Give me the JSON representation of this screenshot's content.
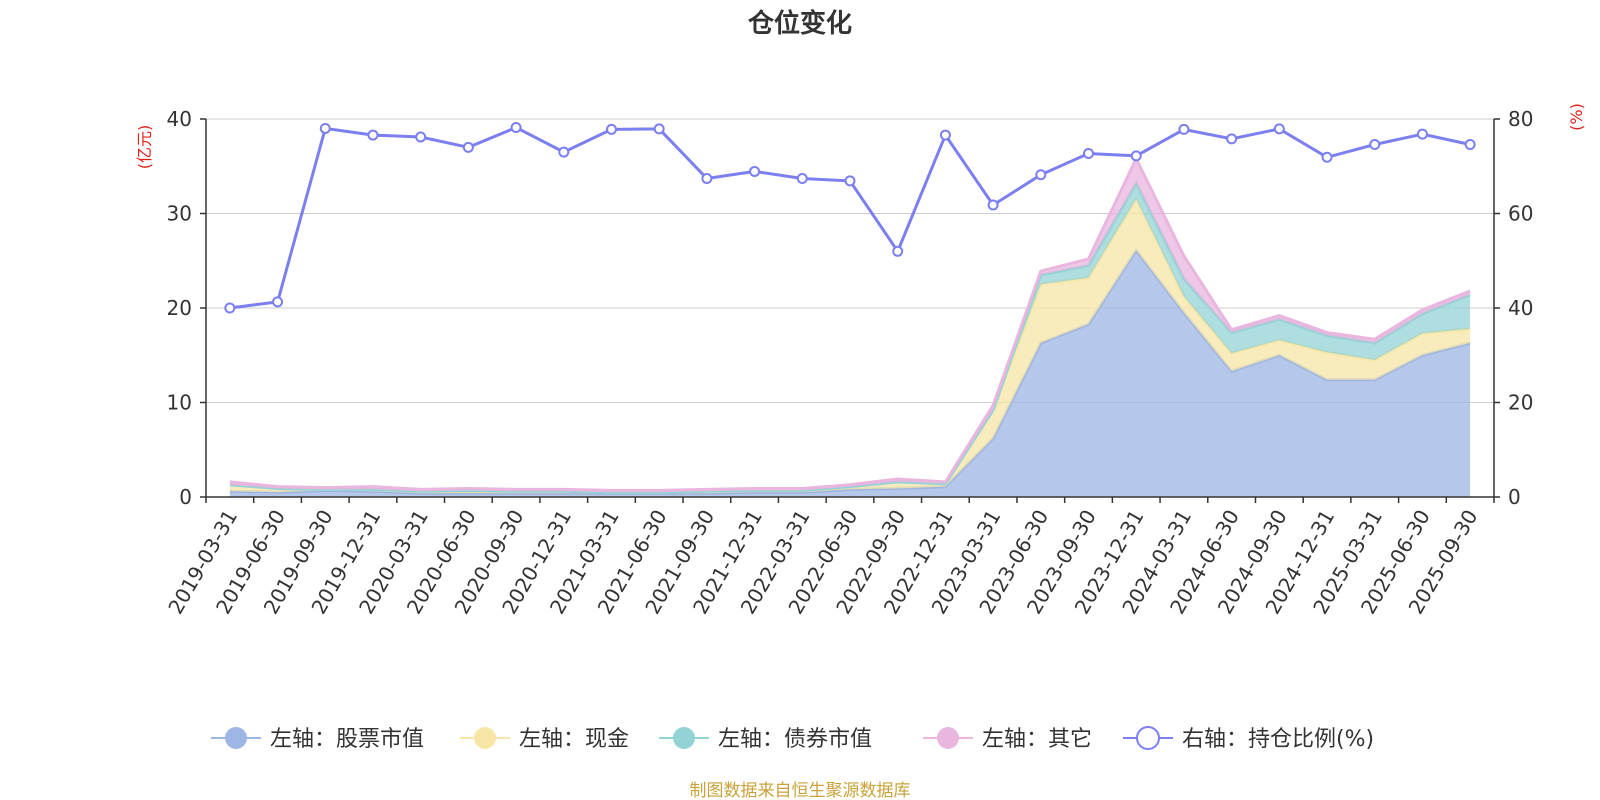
{
  "colors": {
    "stock": "#9db6e3",
    "cash": "#f7e6a6",
    "bond": "#93d3d6",
    "other": "#e8b6de",
    "ratio": "#7b7ff0",
    "unit": "#e0201a",
    "source": "#c9a23a"
  },
  "source_text": "制图数据来自恒生聚源数据库",
  "chart_data": {
    "type": "area",
    "title": "仓位变化",
    "y_left_unit": "(亿元)",
    "y_right_unit": "(%)",
    "y_left_range": [
      0,
      40
    ],
    "y_right_range": [
      0,
      80
    ],
    "y_left_ticks": [
      "0",
      "10",
      "20",
      "30",
      "40"
    ],
    "y_right_ticks": [
      "0",
      "20",
      "40",
      "60",
      "80"
    ],
    "grid": true,
    "legend_position": "bottom",
    "x": [
      "2019-03-31",
      "2019-06-30",
      "2019-09-30",
      "2019-12-31",
      "2020-03-31",
      "2020-06-30",
      "2020-09-30",
      "2020-12-31",
      "2021-03-31",
      "2021-06-30",
      "2021-09-30",
      "2021-12-31",
      "2022-03-31",
      "2022-06-30",
      "2022-09-30",
      "2022-12-31",
      "2023-03-31",
      "2023-06-30",
      "2023-09-30",
      "2023-12-31",
      "2024-03-31",
      "2024-06-30",
      "2024-09-30",
      "2024-12-31",
      "2025-03-31",
      "2025-06-30",
      "2025-09-30"
    ],
    "series": [
      {
        "name": "左轴：股票市值",
        "key": "stock",
        "axis": "left",
        "stacked": true,
        "values": [
          0.6,
          0.5,
          0.7,
          0.6,
          0.4,
          0.4,
          0.4,
          0.4,
          0.4,
          0.4,
          0.4,
          0.5,
          0.5,
          0.8,
          0.9,
          1.1,
          6.2,
          16.3,
          18.3,
          26.1,
          19.5,
          13.3,
          15.0,
          12.4,
          12.4,
          15.0,
          16.3
        ]
      },
      {
        "name": "左轴：现金",
        "key": "cash",
        "axis": "left",
        "stacked": true,
        "values": [
          0.7,
          0.4,
          0.1,
          0.2,
          0.2,
          0.3,
          0.2,
          0.2,
          0.1,
          0.1,
          0.2,
          0.2,
          0.2,
          0.3,
          0.7,
          0.3,
          3.0,
          6.2,
          4.9,
          5.4,
          1.7,
          1.9,
          1.6,
          2.9,
          2.1,
          2.3,
          1.5
        ]
      },
      {
        "name": "左轴：债券市值",
        "key": "bond",
        "axis": "left",
        "stacked": true,
        "values": [
          0.0,
          0.0,
          0.0,
          0.0,
          0.0,
          0.0,
          0.0,
          0.0,
          0.0,
          0.0,
          0.0,
          0.0,
          0.0,
          0.0,
          0.0,
          0.0,
          0.0,
          1.0,
          1.3,
          1.7,
          1.9,
          2.2,
          2.2,
          1.8,
          1.8,
          2.1,
          3.6
        ]
      },
      {
        "name": "左轴：其它",
        "key": "other",
        "axis": "left",
        "stacked": true,
        "values": [
          0.3,
          0.2,
          0.2,
          0.3,
          0.2,
          0.2,
          0.2,
          0.2,
          0.2,
          0.2,
          0.2,
          0.2,
          0.2,
          0.2,
          0.3,
          0.2,
          0.5,
          0.4,
          0.7,
          2.6,
          2.4,
          0.3,
          0.4,
          0.3,
          0.4,
          0.4,
          0.4
        ]
      },
      {
        "name": "右轴：持仓比例(%)",
        "key": "ratio",
        "axis": "right",
        "stacked": false,
        "values": [
          40.0,
          41.3,
          78.0,
          76.6,
          76.2,
          74.0,
          78.2,
          73.0,
          77.8,
          77.9,
          67.4,
          68.9,
          67.4,
          66.9,
          52.0,
          76.6,
          61.8,
          68.2,
          72.7,
          72.2,
          77.8,
          75.8,
          77.9,
          71.9,
          74.6,
          76.8,
          74.6
        ]
      }
    ]
  }
}
